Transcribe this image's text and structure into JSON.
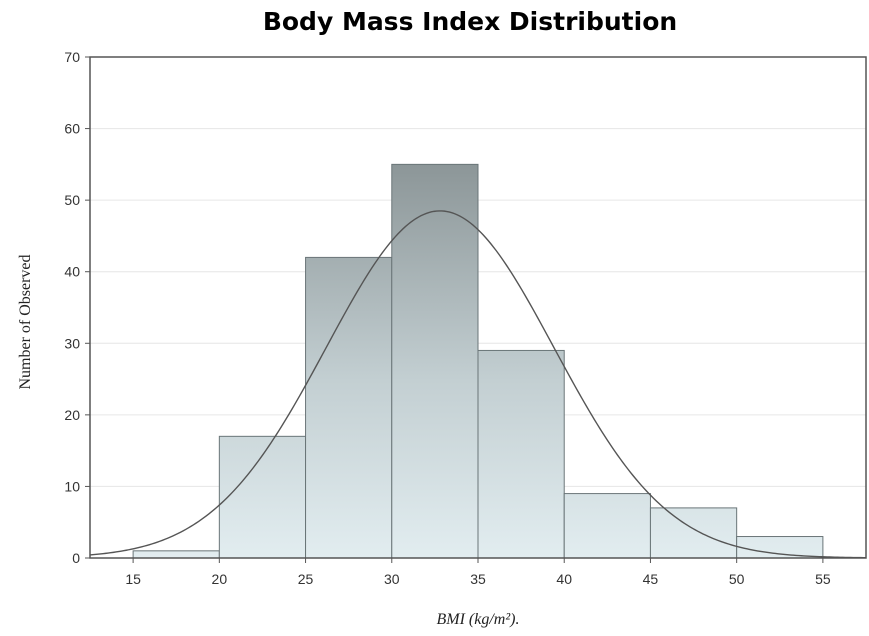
{
  "chart_data": {
    "type": "bar",
    "title": "Body Mass Index Distribution",
    "xlabel": "BMI (kg/m²).",
    "ylabel": "Number of Observed",
    "xlim": [
      12.5,
      57.5
    ],
    "ylim": [
      0,
      70
    ],
    "x_ticks": [
      15,
      20,
      25,
      30,
      35,
      40,
      45,
      50,
      55
    ],
    "y_ticks": [
      0,
      10,
      20,
      30,
      40,
      50,
      60,
      70
    ],
    "bin_width": 5,
    "bins": [
      {
        "start": 15,
        "end": 20,
        "value": 1
      },
      {
        "start": 20,
        "end": 25,
        "value": 17
      },
      {
        "start": 25,
        "end": 30,
        "value": 42
      },
      {
        "start": 30,
        "end": 35,
        "value": 55
      },
      {
        "start": 35,
        "end": 40,
        "value": 29
      },
      {
        "start": 40,
        "end": 45,
        "value": 9
      },
      {
        "start": 45,
        "end": 50,
        "value": 7
      },
      {
        "start": 50,
        "end": 55,
        "value": 3
      }
    ],
    "normal_curve": {
      "mean": 32.8,
      "sd": 6.6,
      "peak": 48.5
    },
    "grid": {
      "x": false,
      "y": true
    },
    "legend": false,
    "colors": {
      "bar_light": "#e2edf0",
      "bar_dark": "#8c9698",
      "bar_stroke": "#6a7578",
      "curve": "#555555",
      "grid": "#e6e6e6",
      "frame": "#555555"
    }
  }
}
